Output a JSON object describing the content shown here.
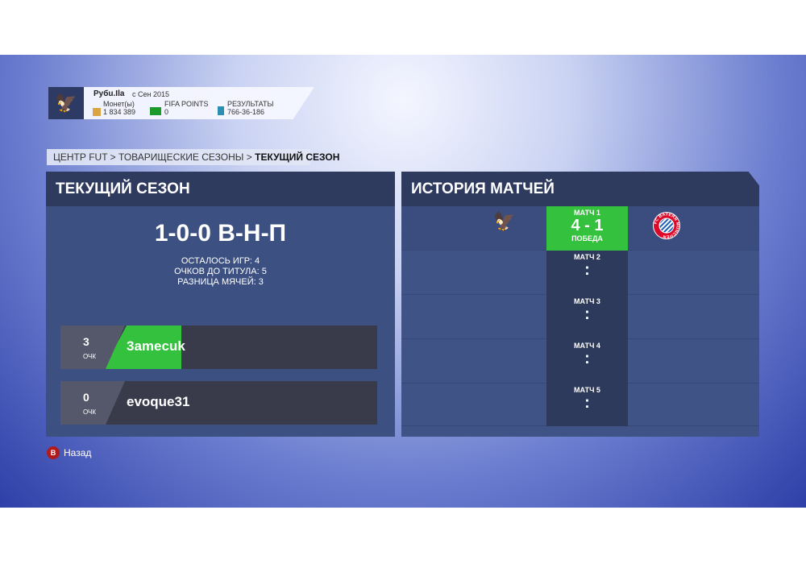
{
  "profile": {
    "name": "Pyбu.Ila",
    "since": "с Сен 2015",
    "coins_label": "Монет(ы)",
    "coins": "1 834 389",
    "points_label": "FIFA POINTS",
    "points": "0",
    "results_label": "РЕЗУЛЬТАТЫ",
    "results": "766-36-186"
  },
  "breadcrumb": {
    "items": [
      "ЦЕНТР FUT",
      "ТОВАРИЩЕСКИЕ СЕЗОНЫ",
      "ТЕКУЩИЙ СЕЗОН"
    ],
    "sep": ">"
  },
  "season": {
    "title": "ТЕКУЩИЙ СЕЗОН",
    "record": "1-0-0 В-Н-П",
    "remaining": "ОСТАЛОСЬ ИГР: 4",
    "to_title": "ОЧКОВ ДО ТИТУЛА: 5",
    "goal_diff": "РАЗНИЦА МЯЧЕЙ: 3",
    "players": [
      {
        "points": "3",
        "unit": "ОЧК",
        "name": "3amecuk",
        "color": "#34c23e"
      },
      {
        "points": "0",
        "unit": "ОЧК",
        "name": "evoque31"
      }
    ]
  },
  "history": {
    "title": "ИСТОРИЯ МАТЧЕЙ",
    "matches": [
      {
        "label": "МАТЧ 1",
        "score": "4 - 1",
        "result": "ПОБЕДА",
        "home_icon": "russia-crest-icon",
        "away_icon": "bayern-munich-crest-icon",
        "away_text": "FC BAYERN MÜNCHEN"
      },
      {
        "label": "МАТЧ 2",
        "score": ":"
      },
      {
        "label": "МАТЧ 3",
        "score": ":"
      },
      {
        "label": "МАТЧ 4",
        "score": ":"
      },
      {
        "label": "МАТЧ 5",
        "score": ":"
      }
    ]
  },
  "footer": {
    "button": "B",
    "back": "Назад"
  },
  "colors": {
    "win": "#34c23e",
    "panel": "#3c5082",
    "header": "#2e3a5e"
  }
}
